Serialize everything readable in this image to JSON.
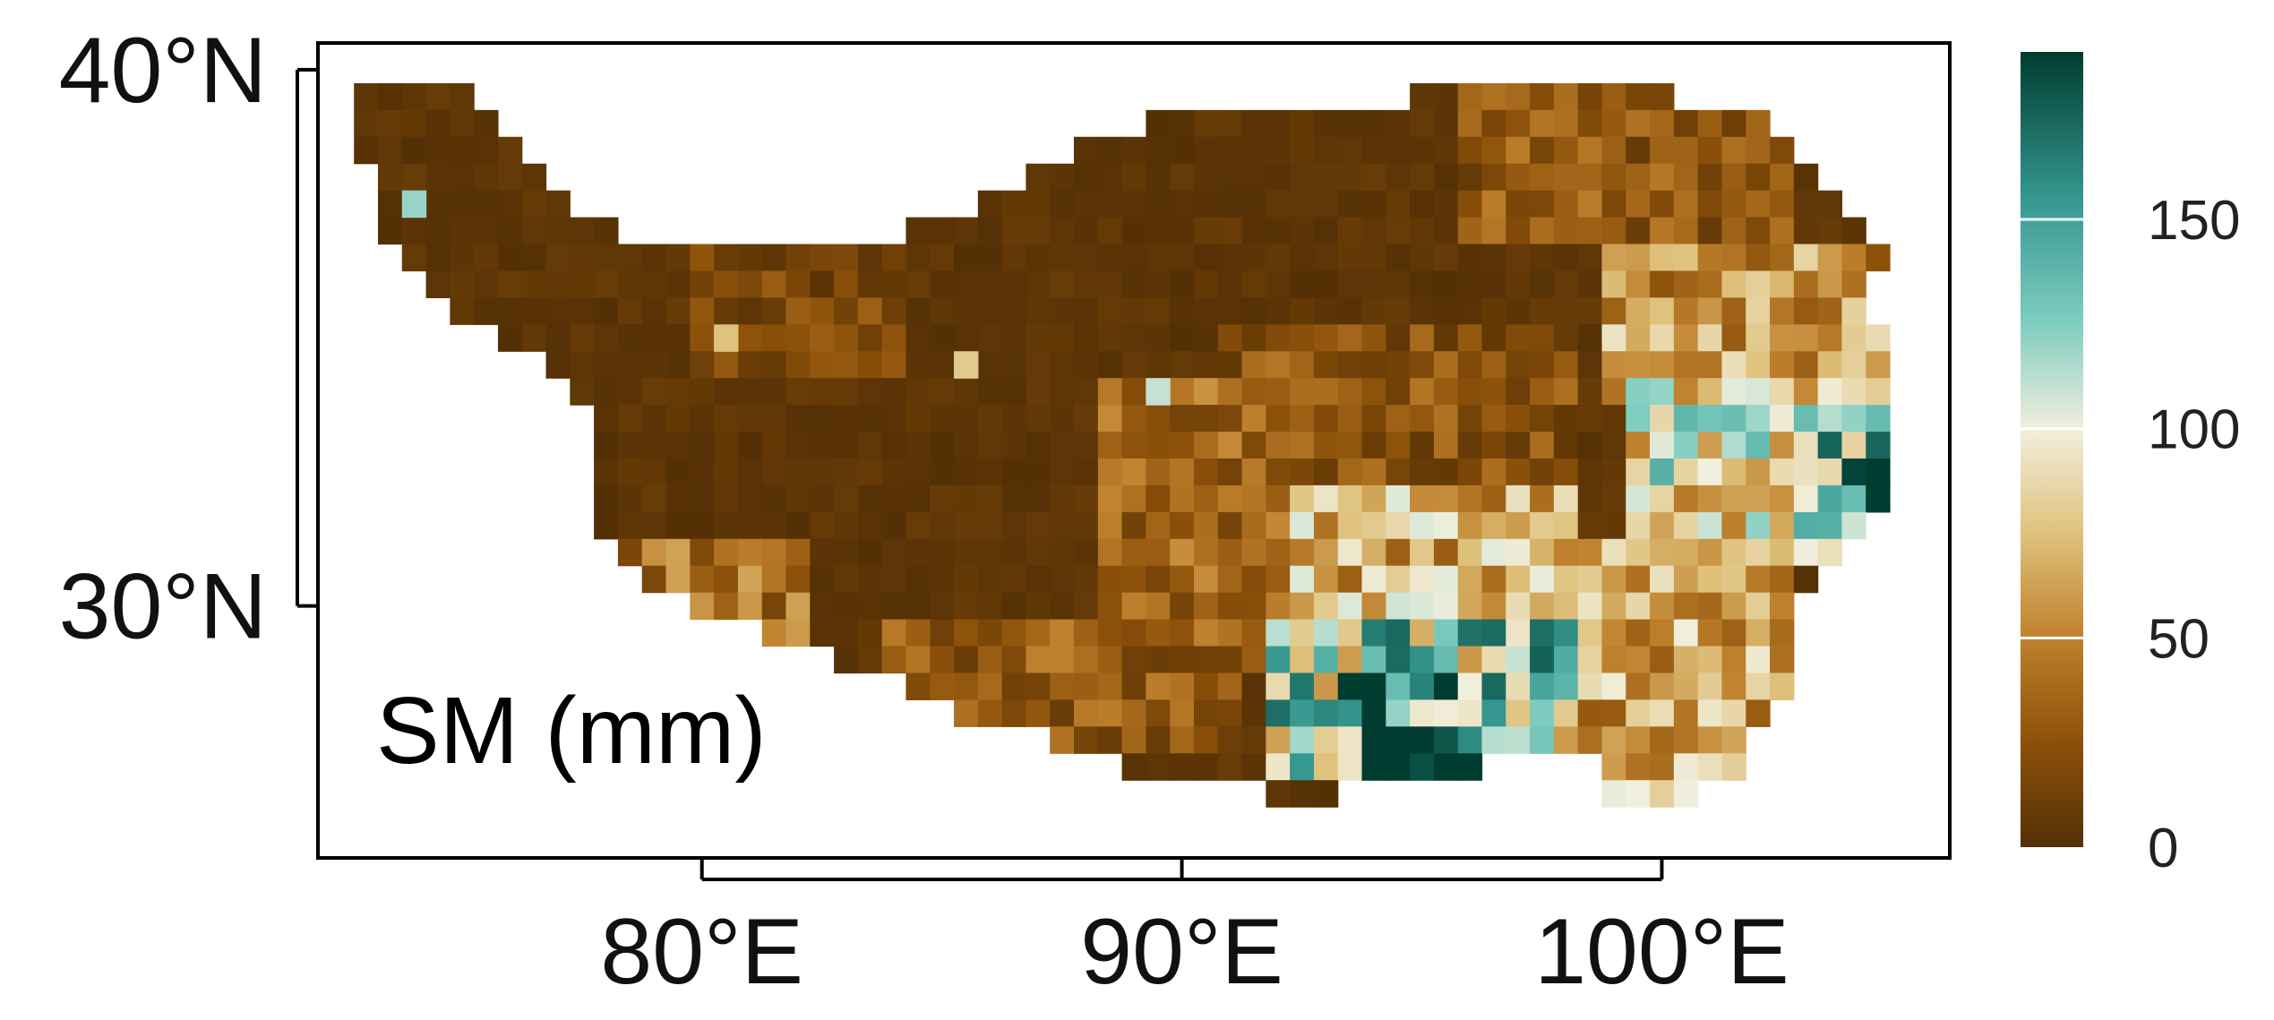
{
  "chart_data": {
    "type": "heatmap",
    "panel_label": "SM (mm)",
    "x_axis": {
      "unit": "degrees longitude",
      "range": [
        72,
        106
      ],
      "ticks": [
        80,
        90,
        100
      ],
      "tick_labels": [
        "80°E",
        "90°E",
        "100°E"
      ]
    },
    "y_axis": {
      "unit": "degrees latitude",
      "range": [
        25.3,
        40.5
      ],
      "ticks": [
        30,
        40
      ],
      "tick_labels": [
        "30°N",
        "40°N"
      ]
    },
    "colorbar": {
      "range": [
        0,
        190
      ],
      "ticks": [
        0,
        50,
        100,
        150
      ],
      "tick_labels": [
        "0",
        "50",
        "100",
        "150"
      ],
      "stops": [
        {
          "value": 0,
          "color": "#543005"
        },
        {
          "value": 25,
          "color": "#8c510a"
        },
        {
          "value": 50,
          "color": "#bf812d"
        },
        {
          "value": 75,
          "color": "#dfc27d"
        },
        {
          "value": 100,
          "color": "#f1efdd"
        },
        {
          "value": 125,
          "color": "#80cdc1"
        },
        {
          "value": 155,
          "color": "#35978f"
        },
        {
          "value": 190,
          "color": "#003c30"
        }
      ]
    },
    "grid": false,
    "cell_size_deg": 0.5,
    "region": {
      "lat_range": [
        26.5,
        39.5
      ],
      "rows": [
        {
          "lat": 39.5,
          "segs": [
            [
              73.0,
              75.0
            ],
            [
              95.0,
              100.0
            ]
          ]
        },
        {
          "lat": 39.0,
          "segs": [
            [
              73.0,
              75.5
            ],
            [
              89.5,
              102.0
            ]
          ]
        },
        {
          "lat": 38.5,
          "segs": [
            [
              73.0,
              76.0
            ],
            [
              88.0,
              102.5
            ]
          ]
        },
        {
          "lat": 38.0,
          "segs": [
            [
              73.5,
              76.5
            ],
            [
              87.0,
              103.0
            ]
          ]
        },
        {
          "lat": 37.5,
          "segs": [
            [
              73.5,
              77.0
            ],
            [
              86.0,
              103.5
            ]
          ]
        },
        {
          "lat": 37.0,
          "segs": [
            [
              73.5,
              78.0
            ],
            [
              84.5,
              104.0
            ]
          ]
        },
        {
          "lat": 36.5,
          "segs": [
            [
              74.0,
              82.0
            ],
            [
              82.0,
              104.5
            ]
          ]
        },
        {
          "lat": 36.0,
          "segs": [
            [
              74.5,
              104.0
            ]
          ]
        },
        {
          "lat": 35.5,
          "segs": [
            [
              75.0,
              104.0
            ]
          ]
        },
        {
          "lat": 35.0,
          "segs": [
            [
              76.0,
              104.5
            ]
          ]
        },
        {
          "lat": 34.5,
          "segs": [
            [
              77.0,
              104.5
            ]
          ]
        },
        {
          "lat": 34.0,
          "segs": [
            [
              77.5,
              104.5
            ]
          ]
        },
        {
          "lat": 33.5,
          "segs": [
            [
              78.0,
              104.5
            ]
          ]
        },
        {
          "lat": 33.0,
          "segs": [
            [
              78.0,
              104.5
            ]
          ]
        },
        {
          "lat": 32.5,
          "segs": [
            [
              78.0,
              104.5
            ]
          ]
        },
        {
          "lat": 32.0,
          "segs": [
            [
              78.0,
              104.5
            ]
          ]
        },
        {
          "lat": 31.5,
          "segs": [
            [
              78.0,
              104.0
            ]
          ]
        },
        {
          "lat": 31.0,
          "segs": [
            [
              78.5,
              103.5
            ]
          ]
        },
        {
          "lat": 30.5,
          "segs": [
            [
              79.0,
              103.0
            ]
          ]
        },
        {
          "lat": 30.0,
          "segs": [
            [
              80.0,
              102.5
            ]
          ]
        },
        {
          "lat": 29.5,
          "segs": [
            [
              81.5,
              102.5
            ]
          ]
        },
        {
          "lat": 29.0,
          "segs": [
            [
              83.0,
              102.5
            ]
          ]
        },
        {
          "lat": 28.5,
          "segs": [
            [
              84.5,
              102.5
            ]
          ]
        },
        {
          "lat": 28.0,
          "segs": [
            [
              85.5,
              102.0
            ]
          ]
        },
        {
          "lat": 27.5,
          "segs": [
            [
              87.5,
              101.5
            ]
          ]
        },
        {
          "lat": 27.0,
          "segs": [
            [
              89.0,
              91.0
            ],
            [
              91.5,
              96.0
            ],
            [
              99.0,
              101.5
            ]
          ]
        },
        {
          "lat": 26.5,
          "segs": [
            [
              92.0,
              93.0
            ],
            [
              99.0,
              100.5
            ]
          ]
        }
      ],
      "isolated_cells": [
        {
          "lon": 74.0,
          "lat": 37.5,
          "value": 120
        },
        {
          "lon": 80.5,
          "lat": 35.0,
          "value": 75
        },
        {
          "lon": 85.5,
          "lat": 34.5,
          "value": 80
        },
        {
          "lon": 89.5,
          "lat": 34.0,
          "value": 110
        }
      ],
      "value_zones": [
        {
          "lon": [
            72.0,
            106.0
          ],
          "lat": [
            25.0,
            41.0
          ],
          "value": 3
        },
        {
          "lon": [
            96.0,
            102.5
          ],
          "lat": [
            37.0,
            40.0
          ],
          "value": 28
        },
        {
          "lon": [
            91.0,
            98.0
          ],
          "lat": [
            32.0,
            35.0
          ],
          "value": 25
        },
        {
          "lon": [
            88.5,
            92.0
          ],
          "lat": [
            29.0,
            34.0
          ],
          "value": 35
        },
        {
          "lon": [
            80.0,
            84.0
          ],
          "lat": [
            34.5,
            36.5
          ],
          "value": 18
        },
        {
          "lon": [
            78.0,
            82.0
          ],
          "lat": [
            29.5,
            31.0
          ],
          "value": 40
        },
        {
          "lon": [
            84.0,
            91.0
          ],
          "lat": [
            27.5,
            29.5
          ],
          "value": 30
        },
        {
          "lon": [
            99.0,
            104.5
          ],
          "lat": [
            34.0,
            36.5
          ],
          "value": 60
        },
        {
          "lon": [
            99.5,
            104.5
          ],
          "lat": [
            31.0,
            34.0
          ],
          "value": 95
        },
        {
          "lon": [
            98.5,
            102.5
          ],
          "lat": [
            26.5,
            31.0
          ],
          "value": 65
        },
        {
          "lon": [
            92.0,
            98.0
          ],
          "lat": [
            29.0,
            32.0
          ],
          "value": 70
        },
        {
          "lon": [
            92.0,
            98.0
          ],
          "lat": [
            27.0,
            29.5
          ],
          "value": 120
        },
        {
          "lon": [
            93.5,
            96.0
          ],
          "lat": [
            27.0,
            28.5
          ],
          "value": 175
        },
        {
          "lon": [
            103.5,
            104.5
          ],
          "lat": [
            32.0,
            33.0
          ],
          "value": 160
        }
      ]
    }
  }
}
